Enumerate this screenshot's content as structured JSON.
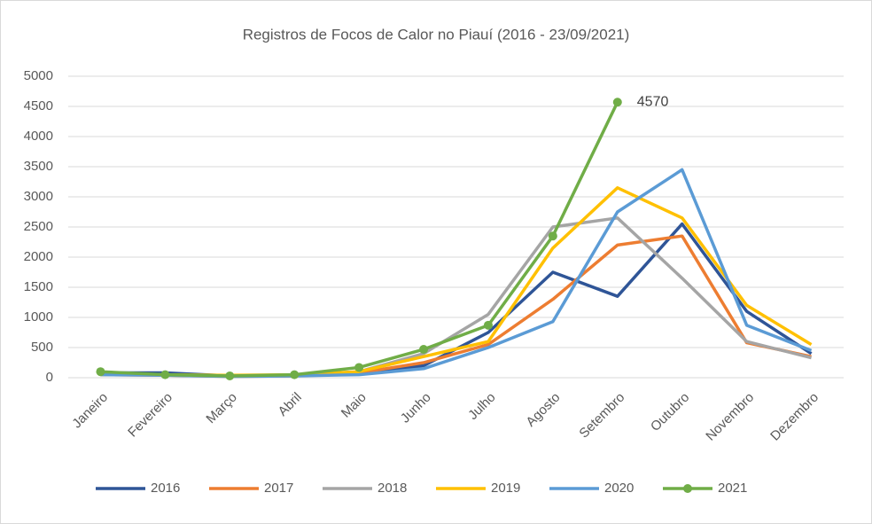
{
  "chart_data": {
    "type": "line",
    "title": "Registros de Focos de Calor no Piauí (2016 - 23/09/2021)",
    "categories": [
      "Janeiro",
      "Fevereiro",
      "Março",
      "Abril",
      "Maio",
      "Junho",
      "Julho",
      "Agosto",
      "Setembro",
      "Outubro",
      "Novembro",
      "Dezembro"
    ],
    "series": [
      {
        "name": "2016",
        "color": "#2f5597",
        "values": [
          80,
          80,
          30,
          40,
          60,
          200,
          750,
          1750,
          1350,
          2550,
          1100,
          400
        ]
      },
      {
        "name": "2017",
        "color": "#ed7d31",
        "values": [
          50,
          40,
          20,
          30,
          80,
          250,
          550,
          1300,
          2200,
          2350,
          580,
          350
        ]
      },
      {
        "name": "2018",
        "color": "#a5a5a5",
        "values": [
          60,
          50,
          30,
          40,
          100,
          400,
          1050,
          2500,
          2650,
          1650,
          600,
          330
        ]
      },
      {
        "name": "2019",
        "color": "#ffc000",
        "values": [
          50,
          50,
          40,
          50,
          100,
          350,
          600,
          2150,
          3150,
          2650,
          1200,
          550
        ]
      },
      {
        "name": "2020",
        "color": "#5b9bd5",
        "values": [
          50,
          40,
          20,
          30,
          50,
          150,
          500,
          930,
          2750,
          3450,
          870,
          450
        ]
      },
      {
        "name": "2021",
        "color": "#70ad47",
        "marker": true,
        "values": [
          100,
          50,
          30,
          50,
          170,
          470,
          870,
          2350,
          4570,
          null,
          null,
          null
        ]
      }
    ],
    "ylim": [
      0,
      5000
    ],
    "yticks": [
      0,
      500,
      1000,
      1500,
      2000,
      2500,
      3000,
      3500,
      4000,
      4500,
      5000
    ],
    "grid": true
  }
}
